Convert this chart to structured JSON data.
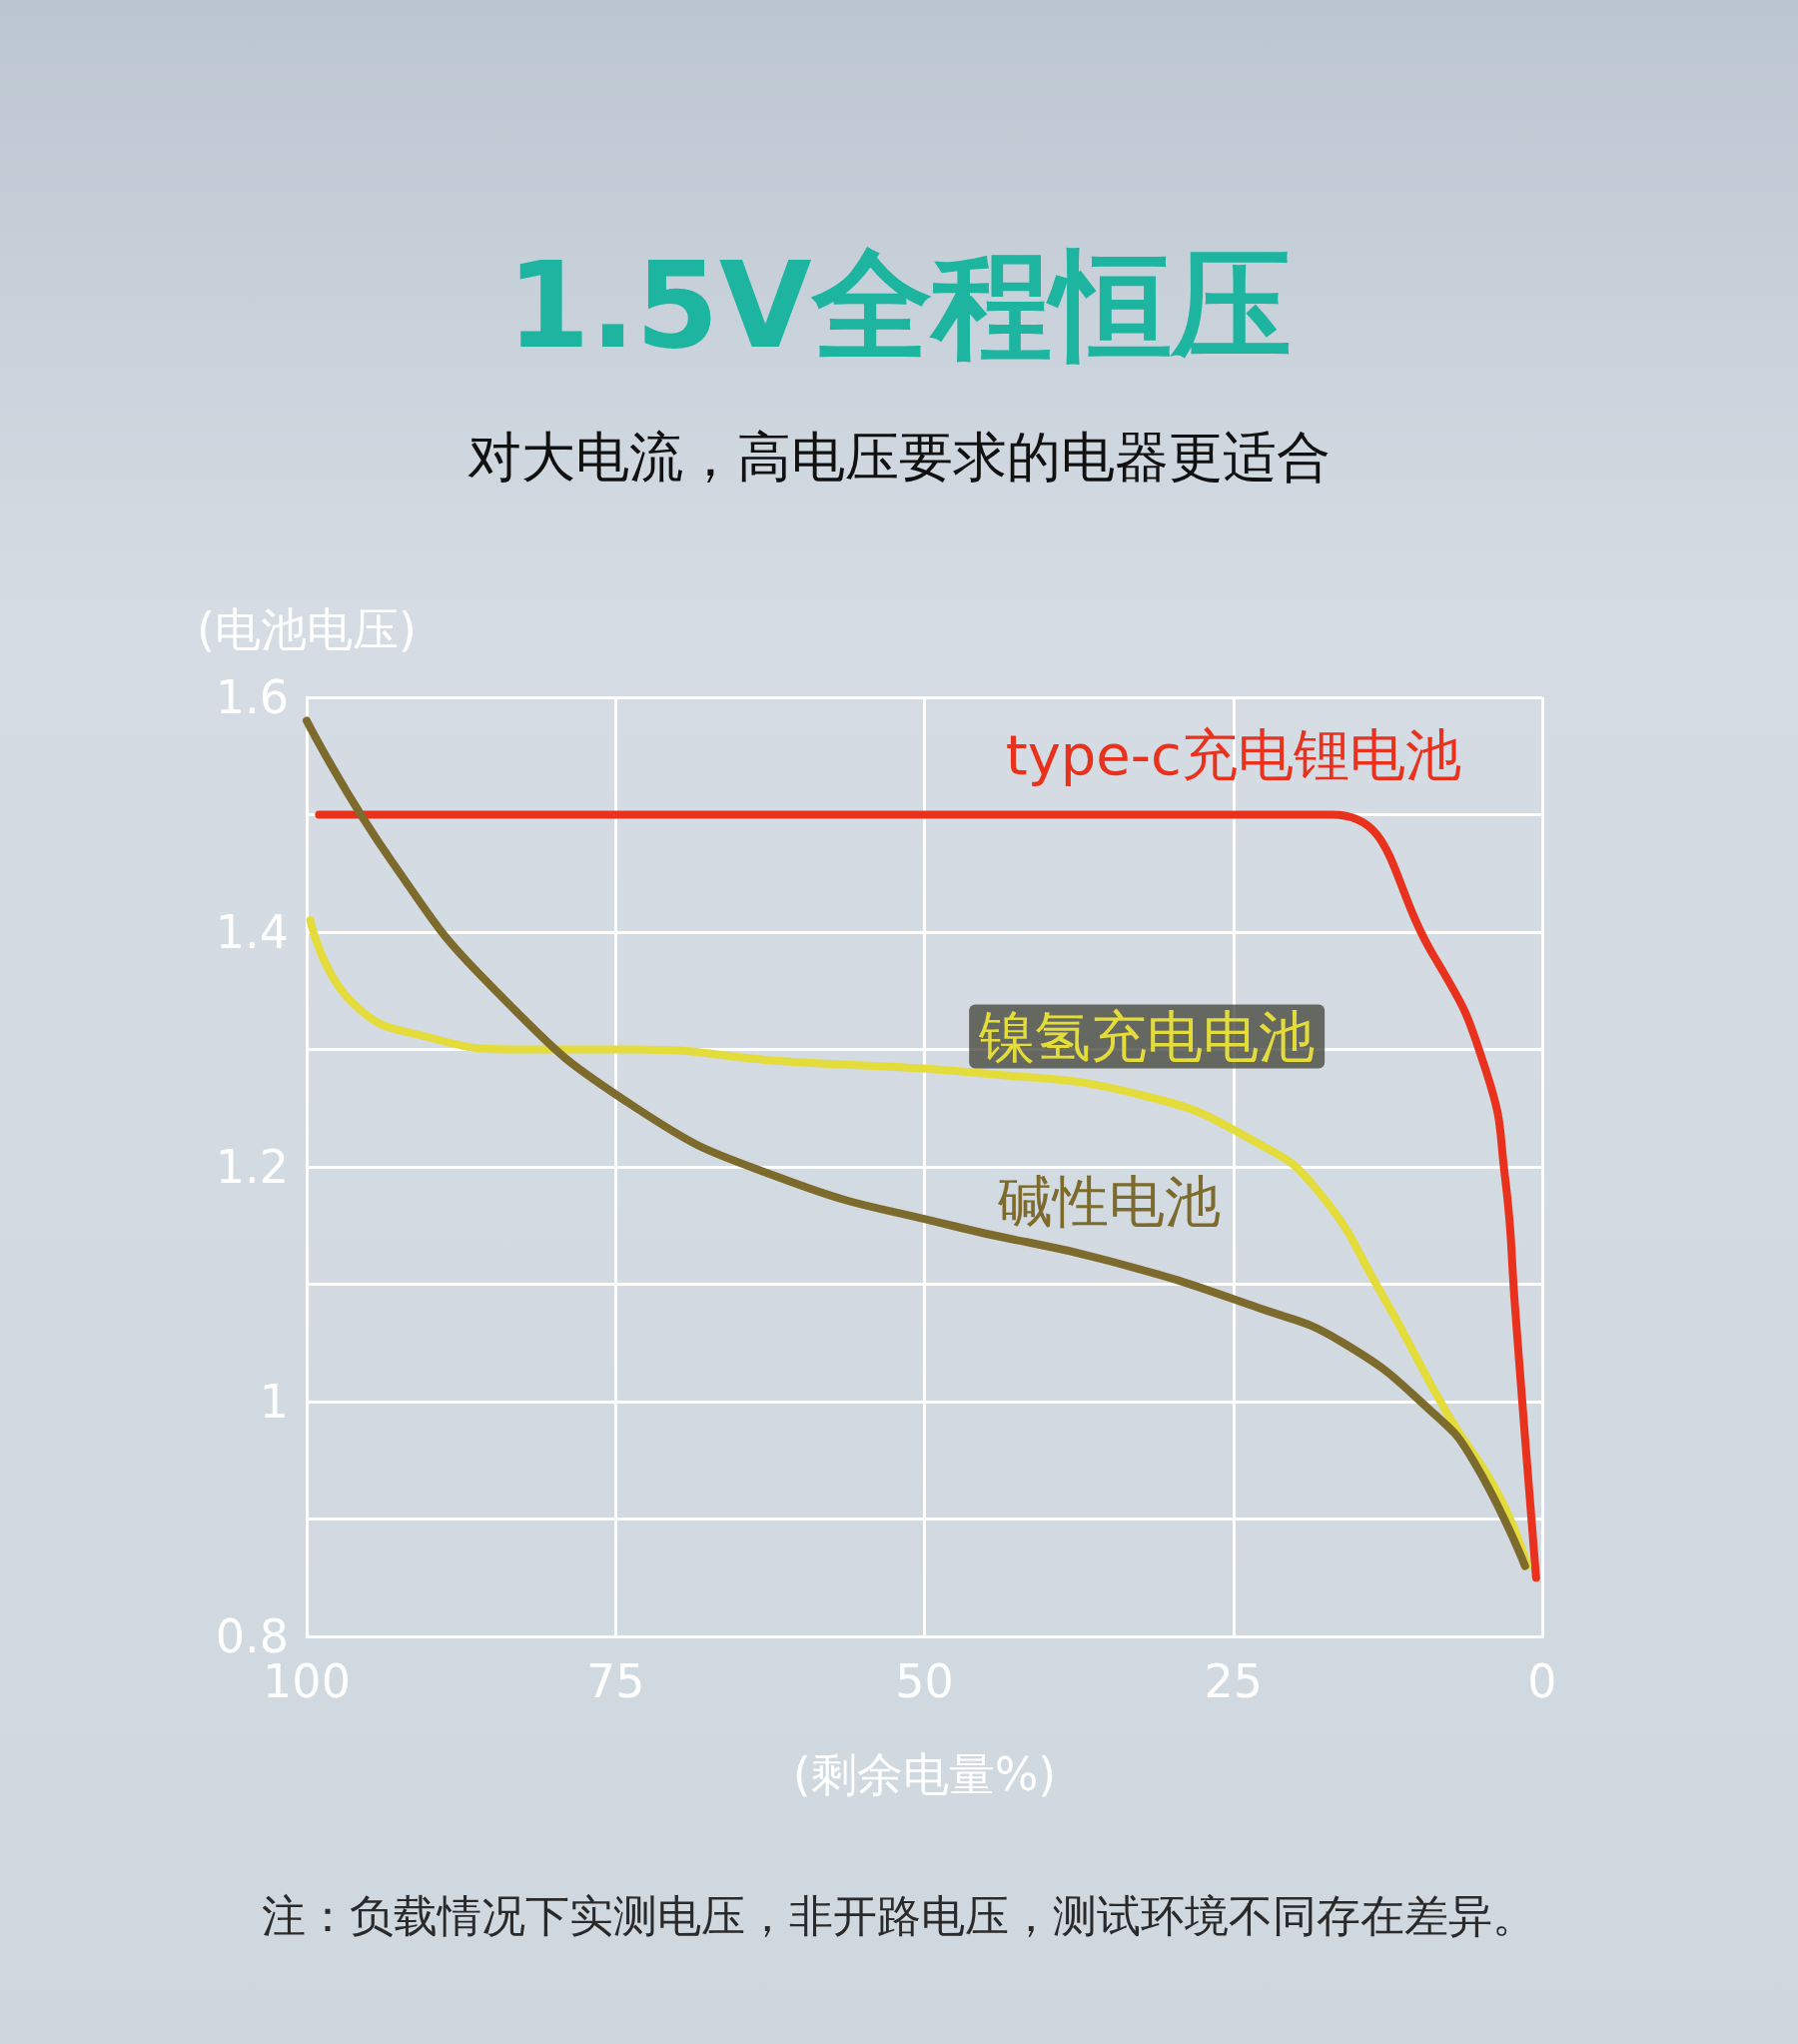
{
  "chart_data": {
    "type": "line",
    "title": "1.5V全程恒压",
    "subtitle": "对大电流，高电压要求的电器更适合",
    "xlabel": "(剩余电量%)",
    "ylabel": "(电池电压)",
    "annotations": [
      "注：负载情况下实测电压，非开路电压，测试环境不同存在差异。"
    ],
    "xlim": [
      100,
      0
    ],
    "xticks": [
      100,
      75,
      50,
      25,
      0
    ],
    "ylim": [
      0.8,
      1.6
    ],
    "yticks": [
      0.8,
      {
        "value": 0.9,
        "label": null
      },
      1,
      {
        "value": 1.1,
        "label": null
      },
      1.2,
      {
        "value": 1.3,
        "label": null
      },
      1.4,
      {
        "value": 1.5,
        "label": null
      },
      1.6
    ],
    "grid": true,
    "marker": "none",
    "line_style": "solid",
    "series": [
      {
        "name": "type-c充电锂电池",
        "color": "#e8321e",
        "x": [
          99,
          75,
          50,
          25,
          17,
          8.8,
          4.5,
          3.0,
          2.2,
          1.4,
          0.5
        ],
        "values": [
          1.5,
          1.5,
          1.5,
          1.5,
          1.5,
          1.38,
          1.28,
          1.19,
          1.08,
          0.97,
          0.85
        ]
      },
      {
        "name": "镍氢充电电池",
        "color": "#e3dc3a",
        "x": [
          99.7,
          96.3,
          90,
          82.6,
          73.3,
          61.5,
          45.7,
          32,
          23,
          18.2,
          12.9,
          7.7,
          3.5,
          1.2
        ],
        "values": [
          1.41,
          1.34,
          1.31,
          1.3,
          1.3,
          1.29,
          1.28,
          1.26,
          1.22,
          1.18,
          1.09,
          0.99,
          0.92,
          0.86
        ]
      },
      {
        "name": "碱性电池",
        "color": "#7d6b2e",
        "x": [
          100,
          93.1,
          84.7,
          73.3,
          61.5,
          47.8,
          35.1,
          23,
          16.1,
          8.8,
          5.6,
          1.4
        ],
        "values": [
          1.58,
          1.46,
          1.35,
          1.25,
          1.19,
          1.15,
          1.12,
          1.08,
          1.05,
          0.99,
          0.95,
          0.86
        ]
      }
    ]
  }
}
